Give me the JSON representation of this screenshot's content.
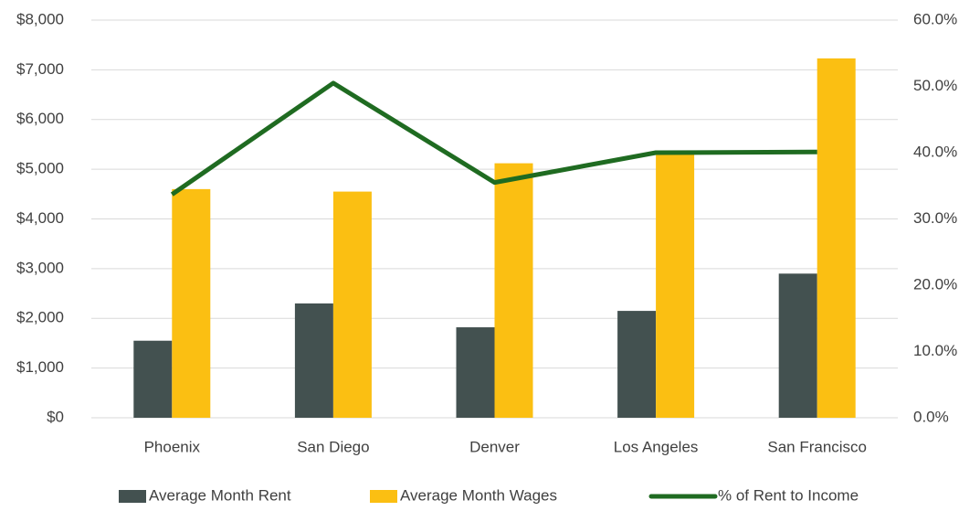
{
  "chart_data": {
    "type": "bar",
    "categories": [
      "Phoenix",
      "San Diego",
      "Denver",
      "Los Angeles",
      "San Francisco"
    ],
    "series": [
      {
        "name": "Average Month Rent",
        "color": "#435150",
        "values": [
          1550,
          2300,
          1820,
          2150,
          2900
        ]
      },
      {
        "name": "Average Month Wages",
        "color": "#fbbf12",
        "values": [
          4600,
          4550,
          5120,
          5370,
          7230
        ]
      },
      {
        "name": "% of Rent to Income",
        "color": "#1f6b21",
        "type": "line",
        "axis": "y2",
        "values": [
          33.7,
          50.5,
          35.5,
          40.0,
          40.1
        ]
      }
    ],
    "ylim": [
      0,
      8000
    ],
    "yticks": [
      {
        "value": 0,
        "label": "$0"
      },
      {
        "value": 1000,
        "label": "$1,000"
      },
      {
        "value": 2000,
        "label": "$2,000"
      },
      {
        "value": 3000,
        "label": "$3,000"
      },
      {
        "value": 4000,
        "label": "$4,000"
      },
      {
        "value": 5000,
        "label": "$5,000"
      },
      {
        "value": 6000,
        "label": "$6,000"
      },
      {
        "value": 7000,
        "label": "$7,000"
      },
      {
        "value": 8000,
        "label": "$8,000"
      }
    ],
    "y2lim": [
      0,
      60
    ],
    "y2ticks": [
      {
        "value": 0,
        "label": "0.0%"
      },
      {
        "value": 10,
        "label": "10.0%"
      },
      {
        "value": 20,
        "label": "20.0%"
      },
      {
        "value": 30,
        "label": "30.0%"
      },
      {
        "value": 40,
        "label": "40.0%"
      },
      {
        "value": 50,
        "label": "50.0%"
      },
      {
        "value": 60,
        "label": "60.0%"
      }
    ],
    "grid": true,
    "legend": "bottom"
  }
}
